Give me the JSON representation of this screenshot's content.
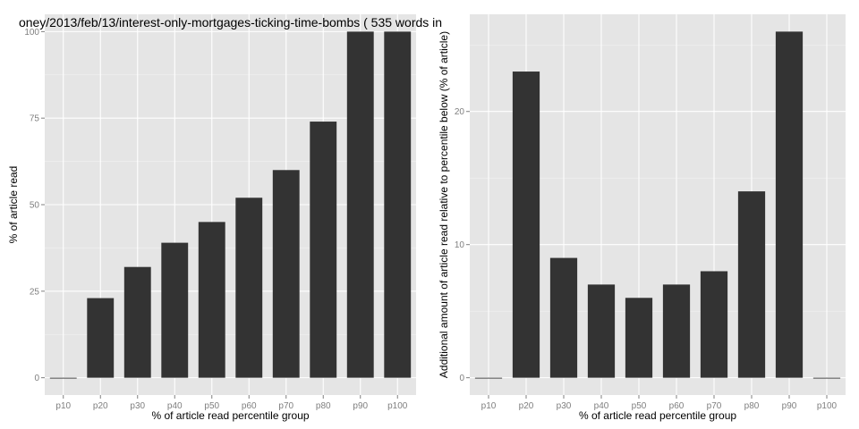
{
  "chart_data": [
    {
      "type": "bar",
      "title": "oney/2013/feb/13/interest-only-mortgages-ticking-time-bombs ( 535 words in",
      "xlabel": "% of article read percentile group",
      "ylabel": "% of article read",
      "categories": [
        "p10",
        "p20",
        "p30",
        "p40",
        "p50",
        "p60",
        "p70",
        "p80",
        "p90",
        "p100"
      ],
      "values": [
        0,
        23,
        32,
        39,
        45,
        52,
        60,
        74,
        100,
        100
      ],
      "ylim": [
        -5,
        105
      ],
      "yticks": [
        0,
        25,
        50,
        75,
        100
      ],
      "grid": true
    },
    {
      "type": "bar",
      "title": "",
      "xlabel": "% of article read percentile group",
      "ylabel": "Additional amount of article read relative to percentile below (% of article)",
      "categories": [
        "p10",
        "p20",
        "p30",
        "p40",
        "p50",
        "p60",
        "p70",
        "p80",
        "p90",
        "p100"
      ],
      "values": [
        0,
        23,
        9,
        7,
        6,
        7,
        8,
        14,
        26,
        0
      ],
      "ylim": [
        -1.3,
        27.3
      ],
      "yticks": [
        0,
        10,
        20
      ],
      "grid": true
    }
  ]
}
